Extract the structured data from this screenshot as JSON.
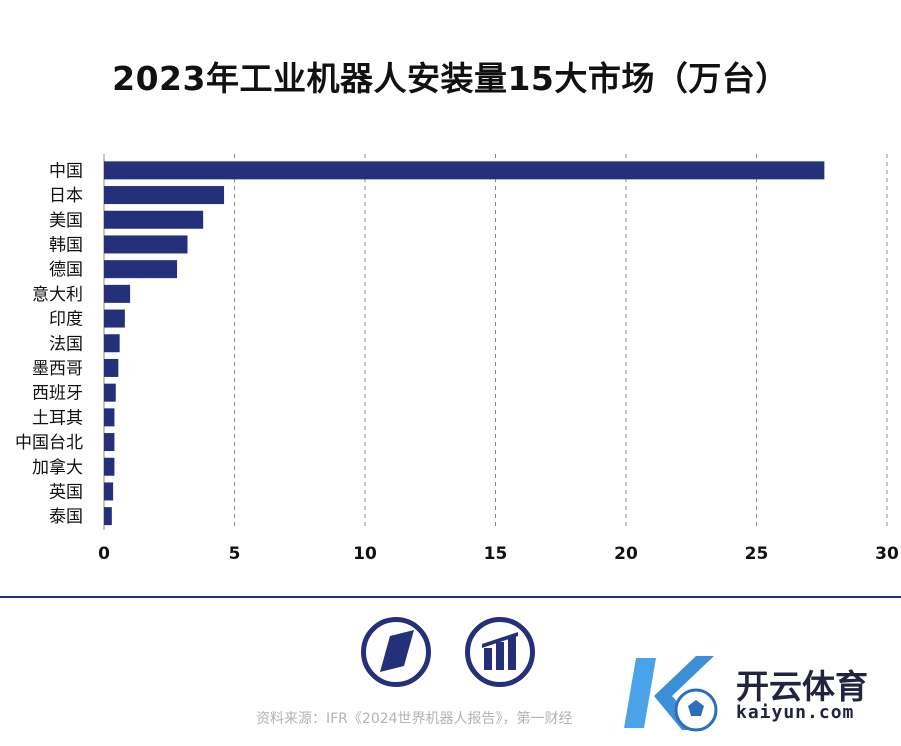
{
  "chart_data": {
    "type": "bar",
    "orientation": "horizontal",
    "title": "2023年工业机器人安装量15大市场（万台）",
    "categories": [
      "中国",
      "日本",
      "美国",
      "韩国",
      "德国",
      "意大利",
      "印度",
      "法国",
      "墨西哥",
      "西班牙",
      "土耳其",
      "中国台北",
      "加拿大",
      "英国",
      "泰国"
    ],
    "values": [
      27.6,
      4.6,
      3.8,
      3.2,
      2.8,
      1.0,
      0.8,
      0.6,
      0.55,
      0.45,
      0.4,
      0.4,
      0.4,
      0.35,
      0.3
    ],
    "xlim": [
      0,
      30
    ],
    "xticks": [
      "0",
      "5",
      "10",
      "15",
      "20",
      "25",
      "30"
    ],
    "grid": "vertical dashed",
    "bar_color": "#25307a"
  },
  "source": "资料来源：IFR《2024世界机器人报告》，第一财经",
  "watermark": {
    "name": "开云体育",
    "domain": "kaiyun.com"
  },
  "colors": {
    "accent": "#25307a",
    "wm_blue": "#4aa3e8",
    "wm_dark": "#22233e"
  },
  "icons": [
    "first-finance-logo-icon",
    "bar-logo-icon",
    "kaiyun-logo-icon"
  ]
}
